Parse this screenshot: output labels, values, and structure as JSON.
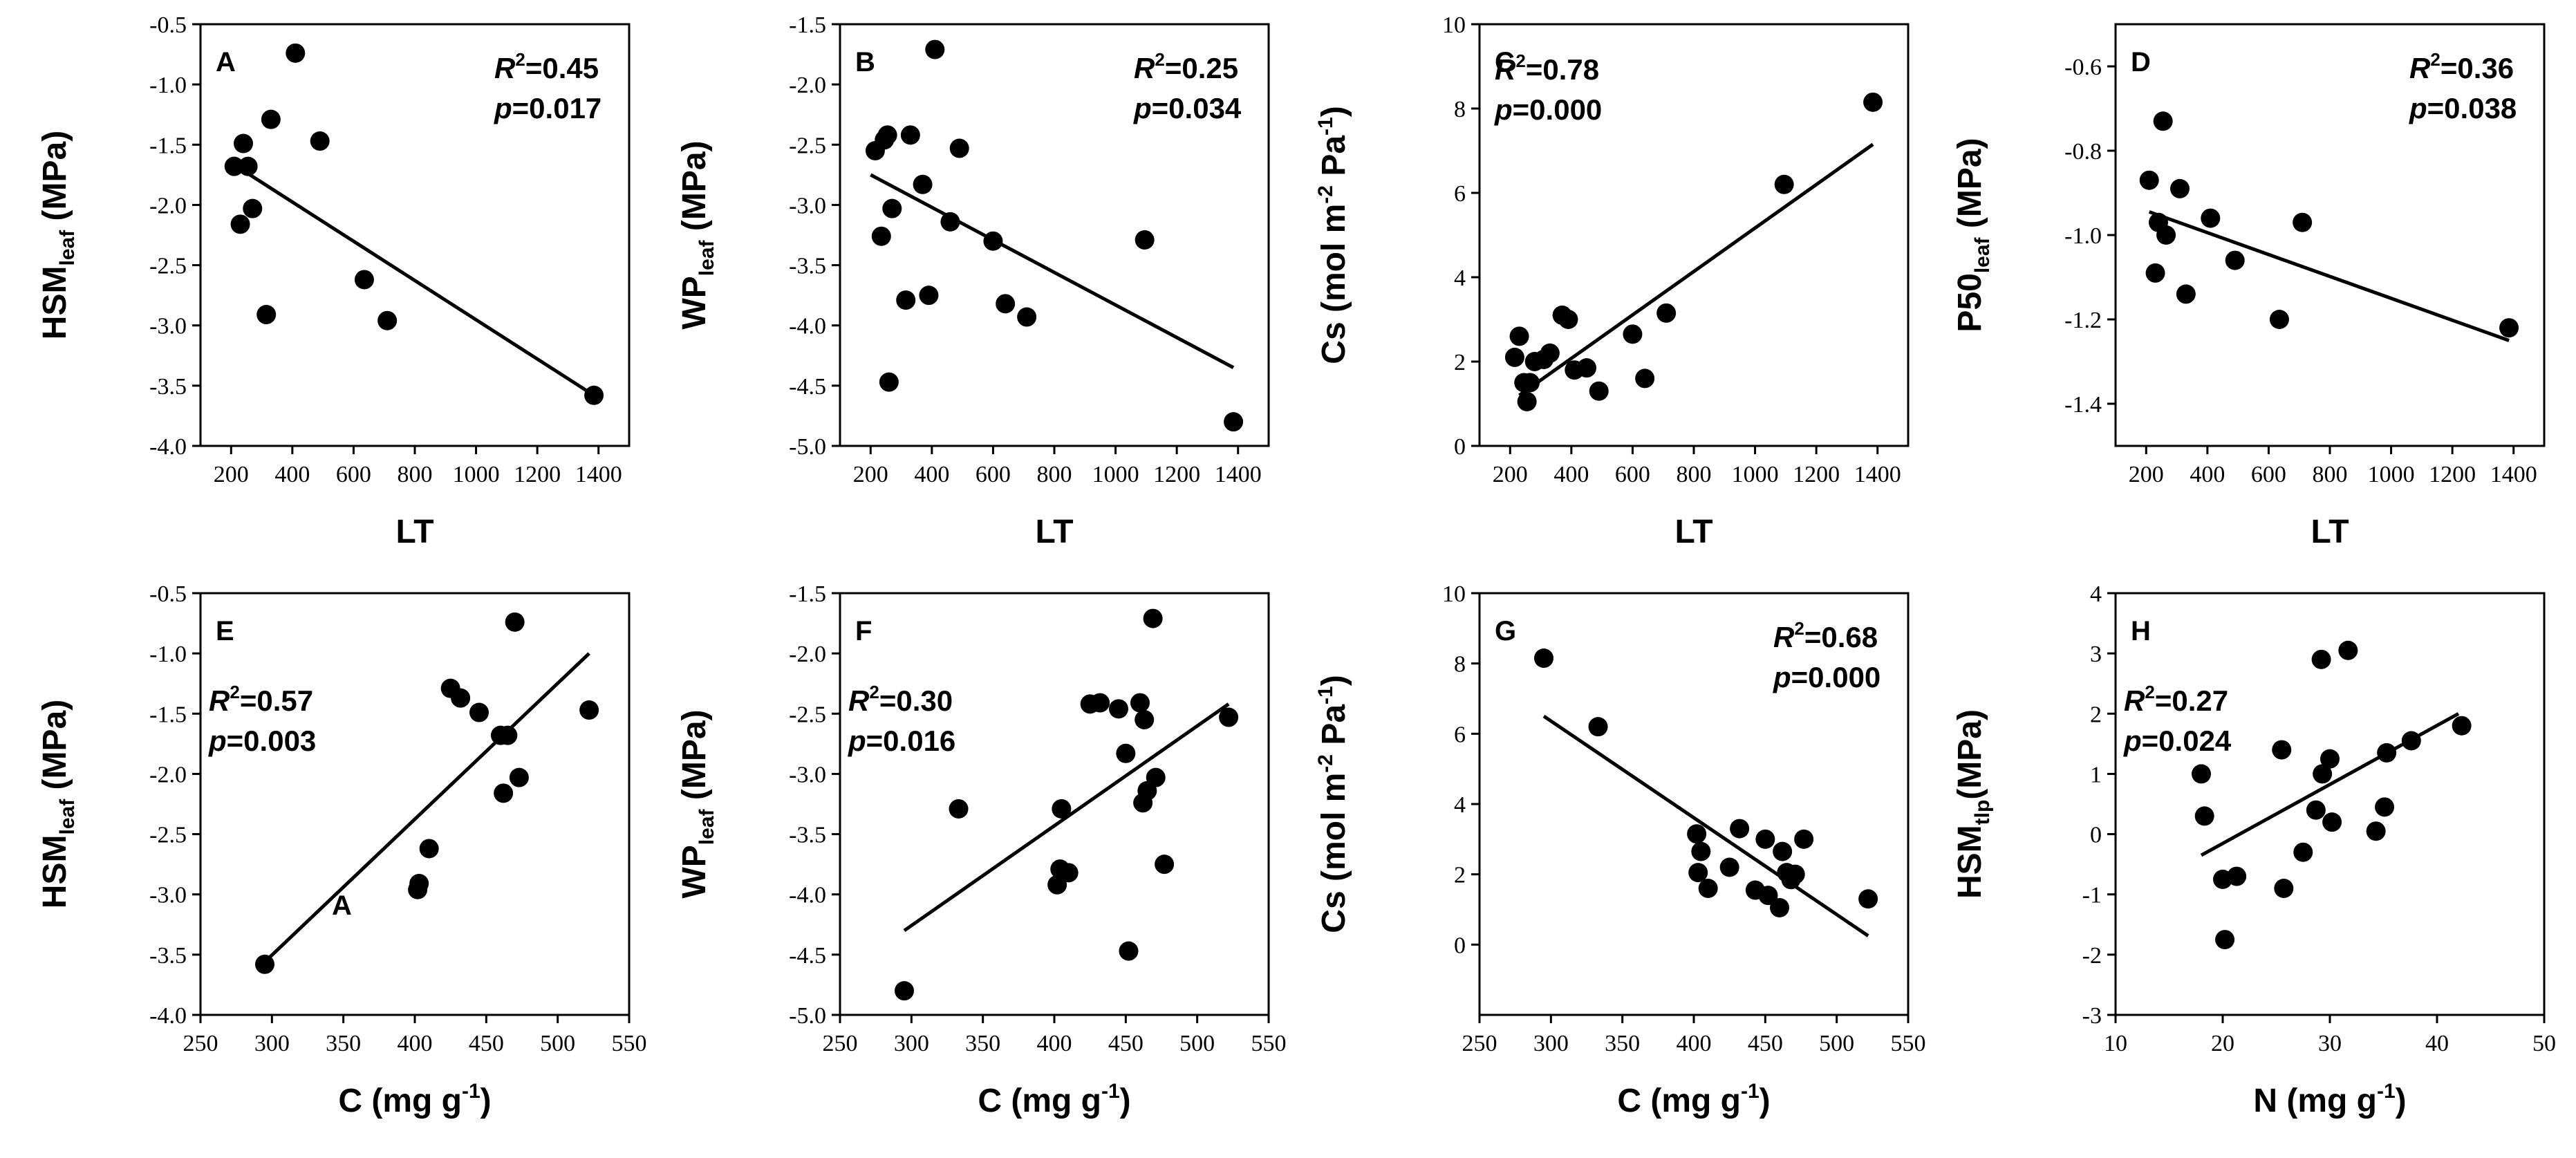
{
  "figure": {
    "colors": {
      "ink": "#000000",
      "background": "#ffffff"
    },
    "panels": [
      {
        "letter": "A",
        "type": "scatter",
        "xlabel": {
          "main": "LT",
          "sub": "",
          "unit": ""
        },
        "ylabel": {
          "main": "HSM",
          "sub": "leaf",
          "unit": " (MPa)"
        },
        "xlim": [
          100,
          1500
        ],
        "xticks": [
          "200",
          "400",
          "600",
          "800",
          "1000",
          "1200",
          "1400"
        ],
        "ylim": [
          -4.0,
          -0.5
        ],
        "yticks": [
          "-4.0",
          "-3.5",
          "-3.0",
          "-2.5",
          "-2.0",
          "-1.5",
          "-1.0",
          "-0.5"
        ],
        "stats": {
          "r2": "=0.45",
          "p": "=0.017",
          "pos": "top-right"
        },
        "fit": [
          [
            200,
            -1.65
          ],
          [
            1385,
            -3.58
          ]
        ],
        "points": [
          [
            210,
            -1.68
          ],
          [
            230,
            -2.16
          ],
          [
            240,
            -1.49
          ],
          [
            255,
            -1.68
          ],
          [
            270,
            -2.03
          ],
          [
            315,
            -2.91
          ],
          [
            330,
            -1.29
          ],
          [
            410,
            -0.74
          ],
          [
            490,
            -1.47
          ],
          [
            635,
            -2.62
          ],
          [
            710,
            -2.96
          ],
          [
            1385,
            -3.58
          ]
        ]
      },
      {
        "letter": "B",
        "type": "scatter",
        "xlabel": {
          "main": "LT",
          "sub": "",
          "unit": ""
        },
        "ylabel": {
          "main": "WP",
          "sub": "leaf",
          "unit": " (MPa)"
        },
        "xlim": [
          100,
          1500
        ],
        "xticks": [
          "200",
          "400",
          "600",
          "800",
          "1000",
          "1200",
          "1400"
        ],
        "ylim": [
          -5.0,
          -1.5
        ],
        "yticks": [
          "-5.0",
          "-4.5",
          "-4.0",
          "-3.5",
          "-3.0",
          "-2.5",
          "-2.0",
          "-1.5"
        ],
        "stats": {
          "r2": "=0.25",
          "p": "=0.034",
          "pos": "top-right"
        },
        "fit": [
          [
            200,
            -2.75
          ],
          [
            1385,
            -4.35
          ]
        ],
        "points": [
          [
            215,
            -2.55
          ],
          [
            235,
            -3.26
          ],
          [
            245,
            -2.46
          ],
          [
            255,
            -2.42
          ],
          [
            260,
            -4.47
          ],
          [
            270,
            -3.03
          ],
          [
            315,
            -3.79
          ],
          [
            330,
            -2.42
          ],
          [
            370,
            -2.83
          ],
          [
            390,
            -3.75
          ],
          [
            410,
            -1.71
          ],
          [
            460,
            -3.14
          ],
          [
            490,
            -2.53
          ],
          [
            600,
            -3.3
          ],
          [
            640,
            -3.82
          ],
          [
            710,
            -3.93
          ],
          [
            1095,
            -3.29
          ],
          [
            1385,
            -4.8
          ]
        ]
      },
      {
        "letter": "C",
        "type": "scatter",
        "xlabel": {
          "main": "LT",
          "sub": "",
          "unit": ""
        },
        "ylabel": {
          "main": "Cs (mol m",
          "sub": "",
          "unit": ""
        },
        "ylabel_full": "Cs (mol m⁻² Pa⁻¹)",
        "xlim": [
          100,
          1500
        ],
        "xticks": [
          "200",
          "400",
          "600",
          "800",
          "1000",
          "1200",
          "1400"
        ],
        "ylim": [
          0,
          10
        ],
        "yticks": [
          "0",
          "2",
          "4",
          "6",
          "8",
          "10"
        ],
        "stats": {
          "r2": "=0.78",
          "p": "=0.000",
          "pos": "top-left"
        },
        "fit": [
          [
            230,
            1.2
          ],
          [
            1385,
            7.15
          ]
        ],
        "points": [
          [
            215,
            2.1
          ],
          [
            230,
            2.6
          ],
          [
            245,
            1.5
          ],
          [
            255,
            1.05
          ],
          [
            265,
            1.5
          ],
          [
            280,
            2.0
          ],
          [
            310,
            2.05
          ],
          [
            330,
            2.2
          ],
          [
            370,
            3.1
          ],
          [
            390,
            3.0
          ],
          [
            410,
            1.8
          ],
          [
            450,
            1.85
          ],
          [
            490,
            1.3
          ],
          [
            600,
            2.65
          ],
          [
            640,
            1.6
          ],
          [
            710,
            3.15
          ],
          [
            1095,
            6.2
          ],
          [
            1385,
            8.15
          ]
        ]
      },
      {
        "letter": "D",
        "type": "scatter",
        "xlabel": {
          "main": "LT",
          "sub": "",
          "unit": ""
        },
        "ylabel": {
          "main": "P50",
          "sub": "leaf",
          "unit": " (MPa)"
        },
        "xlim": [
          100,
          1500
        ],
        "xticks": [
          "200",
          "400",
          "600",
          "800",
          "1000",
          "1200",
          "1400"
        ],
        "ylim": [
          -1.5,
          -0.5
        ],
        "yticks": [
          "-1.4",
          "-1.2",
          "-1.0",
          "-0.8",
          "-0.6"
        ],
        "stats": {
          "r2": "=0.36",
          "p": "=0.038",
          "pos": "top-right"
        },
        "fit": [
          [
            210,
            -0.945
          ],
          [
            1385,
            -1.25
          ]
        ],
        "points": [
          [
            210,
            -0.87
          ],
          [
            230,
            -1.09
          ],
          [
            240,
            -0.97
          ],
          [
            255,
            -0.73
          ],
          [
            265,
            -1.0
          ],
          [
            310,
            -0.89
          ],
          [
            330,
            -1.14
          ],
          [
            410,
            -0.96
          ],
          [
            490,
            -1.06
          ],
          [
            635,
            -1.2
          ],
          [
            710,
            -0.97
          ],
          [
            1385,
            -1.22
          ]
        ]
      },
      {
        "letter": "E",
        "type": "scatter",
        "xlabel": {
          "main": "C (mg g",
          "sub": "",
          "unit": ""
        },
        "xlabel_full": "C (mg g⁻¹)",
        "ylabel": {
          "main": "HSM",
          "sub": "leaf",
          "unit": " (MPa)"
        },
        "xlim": [
          250,
          550
        ],
        "xticks": [
          "250",
          "300",
          "350",
          "400",
          "450",
          "500",
          "550"
        ],
        "ylim": [
          -4.0,
          -0.5
        ],
        "yticks": [
          "-4.0",
          "-3.5",
          "-3.0",
          "-2.5",
          "-2.0",
          "-1.5",
          "-1.0",
          "-0.5"
        ],
        "stats": {
          "r2": "=0.57",
          "p": "=0.003",
          "pos": "mid-left"
        },
        "stray": "A",
        "fit": [
          [
            295,
            -3.56
          ],
          [
            522,
            -1.0
          ]
        ],
        "points": [
          [
            295,
            -3.58
          ],
          [
            402,
            -2.96
          ],
          [
            403,
            -2.91
          ],
          [
            410,
            -2.62
          ],
          [
            425,
            -1.29
          ],
          [
            432,
            -1.37
          ],
          [
            445,
            -1.49
          ],
          [
            460,
            -1.68
          ],
          [
            462,
            -2.16
          ],
          [
            465,
            -1.68
          ],
          [
            470,
            -0.74
          ],
          [
            473,
            -2.03
          ],
          [
            522,
            -1.47
          ]
        ]
      },
      {
        "letter": "F",
        "type": "scatter",
        "xlabel": {
          "main": "C (mg g",
          "sub": "",
          "unit": ""
        },
        "xlabel_full": "C (mg g⁻¹)",
        "ylabel": {
          "main": "WP",
          "sub": "leaf",
          "unit": " (MPa)"
        },
        "xlim": [
          250,
          550
        ],
        "xticks": [
          "250",
          "300",
          "350",
          "400",
          "450",
          "500",
          "550"
        ],
        "ylim": [
          -5.0,
          -1.5
        ],
        "yticks": [
          "-5.0",
          "-4.5",
          "-4.0",
          "-3.5",
          "-3.0",
          "-2.5",
          "-2.0",
          "-1.5"
        ],
        "stats": {
          "r2": "=0.30",
          "p": "=0.016",
          "pos": "mid-left"
        },
        "fit": [
          [
            295,
            -4.3
          ],
          [
            522,
            -2.42
          ]
        ],
        "points": [
          [
            295,
            -4.8
          ],
          [
            333,
            -3.29
          ],
          [
            402,
            -3.92
          ],
          [
            404,
            -3.79
          ],
          [
            405,
            -3.29
          ],
          [
            410,
            -3.82
          ],
          [
            425,
            -2.42
          ],
          [
            432,
            -2.41
          ],
          [
            445,
            -2.46
          ],
          [
            450,
            -2.83
          ],
          [
            452,
            -4.47
          ],
          [
            460,
            -2.41
          ],
          [
            462,
            -3.24
          ],
          [
            463,
            -2.55
          ],
          [
            465,
            -3.14
          ],
          [
            469,
            -1.71
          ],
          [
            471,
            -3.03
          ],
          [
            477,
            -3.75
          ],
          [
            522,
            -2.53
          ]
        ]
      },
      {
        "letter": "G",
        "type": "scatter",
        "xlabel": {
          "main": "C (mg g",
          "sub": "",
          "unit": ""
        },
        "xlabel_full": "C (mg g⁻¹)",
        "ylabel": {
          "main": "Cs (mol m",
          "sub": "",
          "unit": ""
        },
        "ylabel_full": "Cs (mol m⁻² Pa⁻¹)",
        "xlim": [
          250,
          550
        ],
        "xticks": [
          "250",
          "300",
          "350",
          "400",
          "450",
          "500",
          "550"
        ],
        "ylim": [
          -2,
          10
        ],
        "yticks": [
          "0",
          "2",
          "4",
          "6",
          "8",
          "10"
        ],
        "stats": {
          "r2": "=0.68",
          "p": "=0.000",
          "pos": "top-right"
        },
        "fit": [
          [
            295,
            6.5
          ],
          [
            522,
            0.25
          ]
        ],
        "points": [
          [
            295,
            8.15
          ],
          [
            333,
            6.2
          ],
          [
            402,
            3.15
          ],
          [
            403,
            2.05
          ],
          [
            405,
            2.65
          ],
          [
            410,
            1.6
          ],
          [
            425,
            2.2
          ],
          [
            432,
            3.3
          ],
          [
            443,
            1.55
          ],
          [
            450,
            3.0
          ],
          [
            452,
            1.4
          ],
          [
            460,
            1.05
          ],
          [
            462,
            2.65
          ],
          [
            465,
            2.05
          ],
          [
            468,
            1.85
          ],
          [
            471,
            2.0
          ],
          [
            477,
            3.0
          ],
          [
            522,
            1.3
          ]
        ]
      },
      {
        "letter": "H",
        "type": "scatter",
        "xlabel": {
          "main": "N (mg g",
          "sub": "",
          "unit": ""
        },
        "xlabel_full": "N (mg g⁻¹)",
        "ylabel": {
          "main": "HSM",
          "sub": "tlp",
          "unit": "(MPa)"
        },
        "xlim": [
          10,
          50
        ],
        "xticks": [
          "10",
          "20",
          "30",
          "40",
          "50"
        ],
        "ylim": [
          -3,
          4
        ],
        "yticks": [
          "-3",
          "-2",
          "-1",
          "0",
          "1",
          "2",
          "3",
          "4"
        ],
        "stats": {
          "r2": "=0.27",
          "p": "=0.024",
          "pos": "mid-left"
        },
        "fit": [
          [
            18,
            -0.35
          ],
          [
            42,
            2.0
          ]
        ],
        "points": [
          [
            18,
            1.0
          ],
          [
            18.3,
            0.3
          ],
          [
            20,
            -0.75
          ],
          [
            20.2,
            -1.75
          ],
          [
            21.3,
            -0.7
          ],
          [
            25.5,
            1.4
          ],
          [
            25.7,
            -0.9
          ],
          [
            27.5,
            -0.3
          ],
          [
            28.7,
            0.4
          ],
          [
            29.2,
            2.9
          ],
          [
            29.3,
            1.0
          ],
          [
            30,
            1.25
          ],
          [
            30.2,
            0.2
          ],
          [
            31.7,
            3.05
          ],
          [
            34.3,
            0.05
          ],
          [
            35.1,
            0.45
          ],
          [
            35.3,
            1.35
          ],
          [
            37.6,
            1.55
          ],
          [
            42.3,
            1.8
          ]
        ]
      }
    ]
  }
}
